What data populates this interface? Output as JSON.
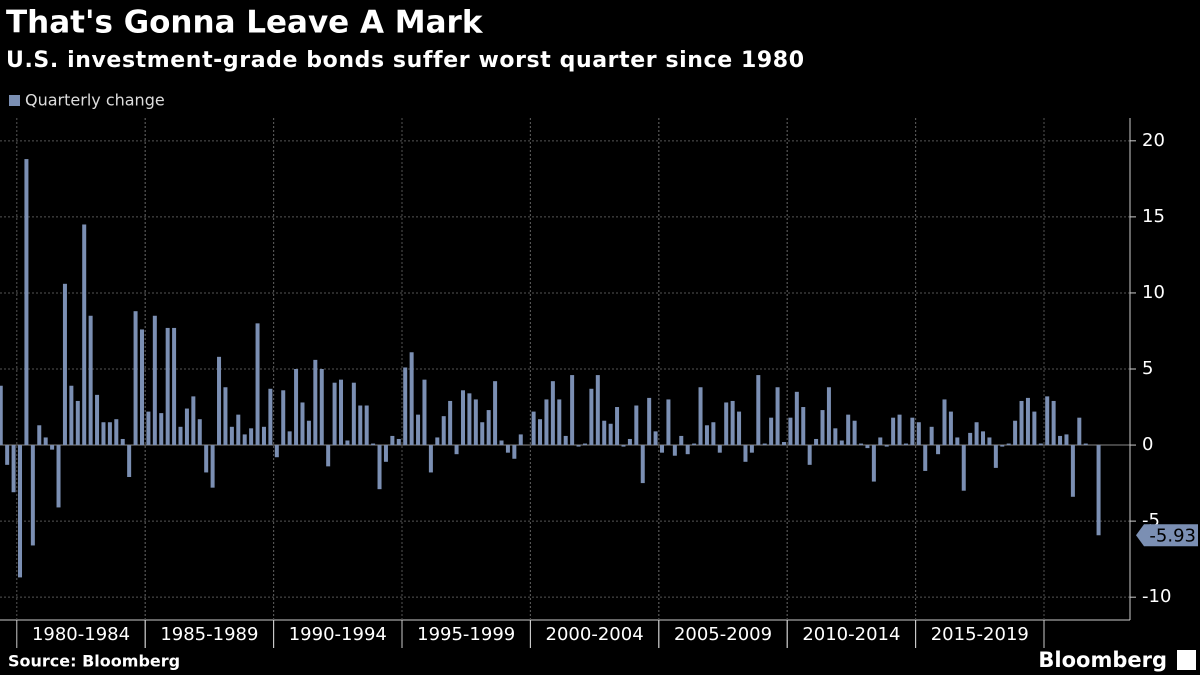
{
  "chart_data": {
    "type": "bar",
    "title": "That's Gonna Leave A Mark",
    "subtitle": "U.S. investment-grade bonds suffer worst quarter since 1980",
    "legend": "Quarterly change",
    "source": "Source: Bloomberg",
    "brand": "Bloomberg",
    "color": "#7b8fb3",
    "grid": true,
    "ylim": [
      -11.5,
      21.5
    ],
    "yticks": [
      -10,
      -5,
      0,
      5,
      10,
      15,
      20
    ],
    "categories": [
      null,
      null,
      null,
      "1980-1984",
      null,
      null,
      null,
      null,
      null,
      null,
      null,
      null,
      null,
      null,
      null,
      null,
      null,
      null,
      null,
      null,
      null,
      null,
      null,
      "1985-1989",
      null,
      null,
      null,
      null,
      null,
      null,
      null,
      null,
      null,
      null,
      null,
      null,
      null,
      null,
      null,
      null,
      null,
      null,
      null,
      "1990-1994",
      null,
      null,
      null,
      null,
      null,
      null,
      null,
      null,
      null,
      null,
      null,
      null,
      null,
      null,
      null,
      null,
      null,
      null,
      null,
      "1995-1999",
      null,
      null,
      null,
      null,
      null,
      null,
      null,
      null,
      null,
      null,
      null,
      null,
      null,
      null,
      null,
      null,
      null,
      null,
      null,
      "2000-2004",
      null,
      null,
      null,
      null,
      null,
      null,
      null,
      null,
      null,
      null,
      null,
      null,
      null,
      null,
      null,
      null,
      null,
      null,
      null,
      "2005-2009",
      null,
      null,
      null,
      null,
      null,
      null,
      null,
      null,
      null,
      null,
      null,
      null,
      null,
      null,
      null,
      null,
      null,
      null,
      null,
      "2010-2014",
      null,
      null,
      null,
      null,
      null,
      null,
      null,
      null,
      null,
      null,
      null,
      null,
      null,
      null,
      null,
      null,
      null,
      null,
      null,
      "2015-2019",
      null,
      null,
      null,
      null,
      null,
      null,
      null,
      null,
      null,
      null,
      null,
      null,
      null,
      null,
      null,
      null,
      null,
      null,
      null,
      null,
      null,
      null,
      null,
      null,
      null,
      null,
      null,
      null
    ],
    "values": [
      3.9,
      -1.3,
      -3.1,
      -8.7,
      18.8,
      -6.6,
      1.3,
      0.5,
      -0.3,
      -4.1,
      10.6,
      3.9,
      2.9,
      14.5,
      8.5,
      3.3,
      1.5,
      1.5,
      1.7,
      0.4,
      -2.1,
      8.8,
      7.6,
      2.2,
      8.5,
      2.1,
      7.7,
      7.7,
      1.2,
      2.4,
      3.2,
      1.7,
      -1.8,
      -2.8,
      5.8,
      3.8,
      1.2,
      2.0,
      0.7,
      1.1,
      8.0,
      1.2,
      3.7,
      -0.8,
      3.6,
      0.9,
      5.0,
      2.8,
      1.6,
      5.6,
      5.0,
      -1.4,
      4.1,
      4.3,
      0.3,
      4.1,
      2.6,
      2.6,
      0.1,
      -2.9,
      -1.1,
      0.6,
      0.4,
      5.1,
      6.1,
      2.0,
      4.3,
      -1.8,
      0.5,
      1.9,
      2.9,
      -0.6,
      3.6,
      3.4,
      3.0,
      1.5,
      2.3,
      4.2,
      0.3,
      -0.5,
      -0.9,
      0.7,
      0.0,
      2.2,
      1.7,
      3.0,
      4.2,
      3.0,
      0.6,
      4.6,
      -0.1,
      0.1,
      3.7,
      4.6,
      1.6,
      1.4,
      2.5,
      -0.1,
      0.4,
      2.6,
      -2.5,
      3.1,
      0.9,
      -0.5,
      3.0,
      -0.7,
      0.6,
      -0.6,
      0.1,
      3.8,
      1.3,
      1.5,
      -0.5,
      2.8,
      2.9,
      2.2,
      -1.1,
      -0.5,
      4.6,
      0.1,
      1.8,
      3.8,
      0.2,
      1.8,
      3.5,
      2.5,
      -1.3,
      0.4,
      2.3,
      3.8,
      1.1,
      0.3,
      2.0,
      1.6,
      0.1,
      -0.2,
      -2.4,
      0.5,
      -0.1,
      1.8,
      2.0,
      0.1,
      1.8,
      1.5,
      -1.7,
      1.2,
      -0.6,
      3.0,
      2.2,
      0.5,
      -3.0,
      0.8,
      1.5,
      0.9,
      0.5,
      -1.5,
      -0.1,
      0.1,
      1.6,
      2.9,
      3.1,
      2.2,
      0.1,
      3.2,
      2.9,
      0.6,
      0.7,
      -3.4,
      1.8,
      0.1,
      0.0,
      -5.93
    ]
  }
}
